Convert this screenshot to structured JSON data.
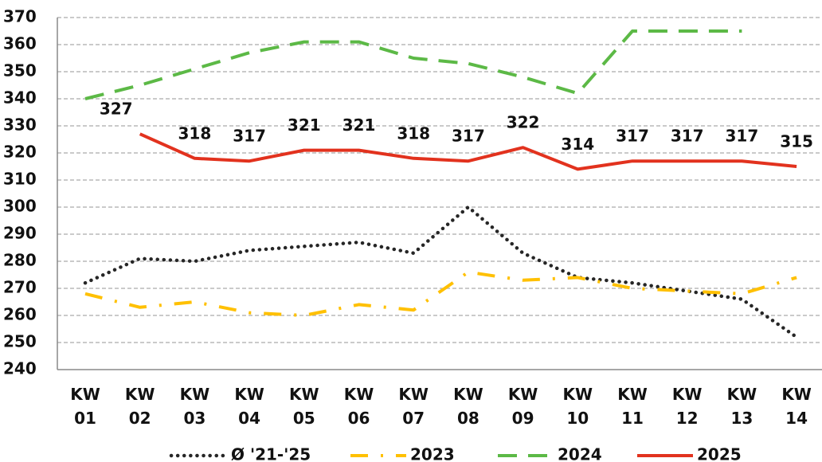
{
  "chart_data": {
    "type": "line",
    "categories": [
      "KW 01",
      "KW 02",
      "KW 03",
      "KW 04",
      "KW 05",
      "KW 06",
      "KW 07",
      "KW 08",
      "KW 09",
      "KW 10",
      "KW 11",
      "KW 12",
      "KW 13",
      "KW 14"
    ],
    "series": [
      {
        "name": "Ø '21-'25",
        "color": "#262626",
        "dash": "dotted",
        "values": [
          272,
          281,
          280,
          284,
          285.5,
          287,
          283,
          300,
          283,
          274,
          272,
          269,
          266,
          252
        ]
      },
      {
        "name": "2023",
        "color": "#ffc000",
        "dash": "dashdot",
        "values": [
          268,
          263,
          265,
          261,
          260,
          264,
          262,
          276,
          273,
          274,
          270,
          269,
          268,
          274
        ]
      },
      {
        "name": "2024",
        "color": "#5cb946",
        "dash": "dashed",
        "values": [
          340,
          345,
          351,
          357,
          361,
          361,
          355,
          353,
          348,
          342,
          365,
          365,
          365,
          null
        ]
      },
      {
        "name": "2025",
        "color": "#e2321e",
        "dash": "solid",
        "data_labels": true,
        "values": [
          null,
          327,
          318,
          317,
          321,
          321,
          318,
          317,
          322,
          314,
          317,
          317,
          317,
          315
        ]
      }
    ],
    "ylim": [
      240,
      370
    ],
    "yticks": [
      240,
      250,
      260,
      270,
      280,
      290,
      300,
      310,
      320,
      330,
      340,
      350,
      360,
      370
    ],
    "grid": true,
    "legend": "bottom"
  }
}
